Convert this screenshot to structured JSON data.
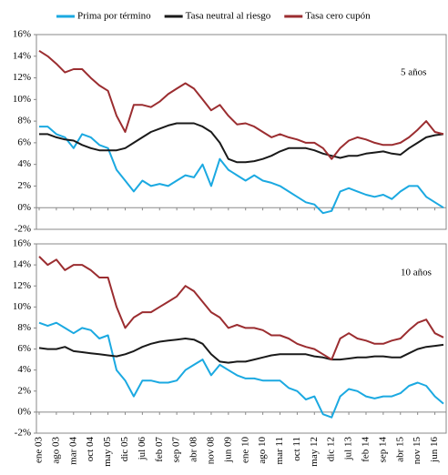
{
  "chart_data": [
    {
      "type": "line",
      "label": "5 años",
      "ylim": [
        -2,
        16
      ],
      "yticks": [
        {
          "value": -2,
          "label": "-2%"
        },
        {
          "value": 0,
          "label": "0%"
        },
        {
          "value": 2,
          "label": "2%"
        },
        {
          "value": 4,
          "label": "4%"
        },
        {
          "value": 6,
          "label": "6%"
        },
        {
          "value": 8,
          "label": "8%"
        },
        {
          "value": 10,
          "label": "10%"
        },
        {
          "value": 12,
          "label": "12%"
        },
        {
          "value": 14,
          "label": "14%"
        },
        {
          "value": 16,
          "label": "16%"
        }
      ],
      "legend": "top",
      "series": [
        {
          "name": "Prima por término",
          "color": "#1ba9e1",
          "values": [
            7.5,
            7.5,
            6.8,
            6.5,
            5.5,
            6.8,
            6.5,
            5.8,
            5.5,
            3.5,
            2.5,
            1.5,
            2.5,
            2.0,
            2.2,
            2.0,
            2.5,
            3.0,
            2.8,
            4.0,
            2.0,
            4.5,
            3.5,
            3.0,
            2.5,
            3.0,
            2.5,
            2.3,
            2.0,
            1.5,
            1.0,
            0.5,
            0.3,
            -0.5,
            -0.3,
            1.5,
            1.8,
            1.5,
            1.2,
            1.0,
            1.2,
            0.8,
            1.5,
            2.0,
            2.0,
            1.0,
            0.5,
            0.0
          ]
        },
        {
          "name": "Tasa neutral al riesgo",
          "color": "#1a1a1a",
          "values": [
            6.8,
            6.8,
            6.5,
            6.3,
            6.2,
            5.8,
            5.5,
            5.3,
            5.3,
            5.3,
            5.5,
            6.0,
            6.5,
            7.0,
            7.3,
            7.6,
            7.8,
            7.8,
            7.8,
            7.5,
            7.0,
            6.0,
            4.5,
            4.2,
            4.2,
            4.3,
            4.5,
            4.8,
            5.2,
            5.5,
            5.5,
            5.5,
            5.3,
            5.0,
            4.8,
            4.6,
            4.8,
            4.8,
            5.0,
            5.1,
            5.2,
            5.0,
            4.9,
            5.5,
            6.0,
            6.5,
            6.7,
            6.8
          ]
        },
        {
          "name": "Tasa cero cupón",
          "color": "#9b2d30",
          "values": [
            14.5,
            14.0,
            13.3,
            12.5,
            12.8,
            12.8,
            12.0,
            11.3,
            10.8,
            8.5,
            7.0,
            9.5,
            9.5,
            9.3,
            9.8,
            10.5,
            11.0,
            11.5,
            11.0,
            10.0,
            9.0,
            9.5,
            8.5,
            7.7,
            7.8,
            7.5,
            7.0,
            6.5,
            6.8,
            6.5,
            6.3,
            6.0,
            6.0,
            5.5,
            4.5,
            5.5,
            6.2,
            6.5,
            6.3,
            6.0,
            5.8,
            5.8,
            6.0,
            6.5,
            7.2,
            8.0,
            7.0,
            6.8
          ]
        }
      ]
    },
    {
      "type": "line",
      "label": "10 años",
      "ylim": [
        -2,
        16
      ],
      "yticks": [
        {
          "value": -2,
          "label": "-2%"
        },
        {
          "value": 0,
          "label": "0%"
        },
        {
          "value": 2,
          "label": "2%"
        },
        {
          "value": 4,
          "label": "4%"
        },
        {
          "value": 6,
          "label": "6%"
        },
        {
          "value": 8,
          "label": "8%"
        },
        {
          "value": 10,
          "label": "10%"
        },
        {
          "value": 12,
          "label": "12%"
        },
        {
          "value": 14,
          "label": "14%"
        },
        {
          "value": 16,
          "label": "16%"
        }
      ],
      "categories": [
        "ene 03",
        null,
        "ago 03",
        null,
        "mar 04",
        null,
        "oct 04",
        null,
        "may 05",
        null,
        "dic 05",
        null,
        "jul 06",
        null,
        "feb 07",
        null,
        "sep 07",
        null,
        "abr 08",
        null,
        "nov 08",
        null,
        "jun 09",
        null,
        "ene 10",
        null,
        "ago 10",
        null,
        "mar 11",
        null,
        "oct 11",
        null,
        "may 12",
        null,
        "dic 12",
        null,
        "jul 13",
        null,
        "feb 14",
        null,
        "sep 14",
        null,
        "abr 15",
        null,
        "nov 15",
        null,
        "jun 16",
        null
      ],
      "series": [
        {
          "color": "#1ba9e1",
          "values": [
            8.5,
            8.2,
            8.5,
            8.0,
            7.5,
            8.0,
            7.8,
            7.0,
            7.3,
            4.0,
            3.0,
            1.5,
            3.0,
            3.0,
            2.8,
            2.8,
            3.0,
            4.0,
            4.5,
            5.0,
            3.5,
            4.5,
            4.0,
            3.5,
            3.2,
            3.2,
            3.0,
            3.0,
            3.0,
            2.3,
            2.0,
            1.2,
            1.5,
            -0.2,
            -0.5,
            1.5,
            2.2,
            2.0,
            1.5,
            1.3,
            1.5,
            1.5,
            1.8,
            2.5,
            2.8,
            2.5,
            1.5,
            0.8
          ]
        },
        {
          "color": "#1a1a1a",
          "values": [
            6.1,
            6.0,
            6.0,
            6.2,
            5.8,
            5.7,
            5.6,
            5.5,
            5.4,
            5.3,
            5.5,
            5.8,
            6.2,
            6.5,
            6.7,
            6.8,
            6.9,
            7.0,
            6.9,
            6.5,
            5.5,
            4.8,
            4.7,
            4.8,
            4.8,
            5.0,
            5.2,
            5.4,
            5.5,
            5.5,
            5.5,
            5.5,
            5.3,
            5.2,
            5.0,
            5.0,
            5.1,
            5.2,
            5.2,
            5.3,
            5.3,
            5.2,
            5.2,
            5.6,
            6.0,
            6.2,
            6.3,
            6.4
          ]
        },
        {
          "color": "#9b2d30",
          "values": [
            14.8,
            14.0,
            14.5,
            13.5,
            14.0,
            14.0,
            13.5,
            12.8,
            12.8,
            10.0,
            8.0,
            9.0,
            9.5,
            9.5,
            10.0,
            10.5,
            11.0,
            12.0,
            11.5,
            10.5,
            9.5,
            9.0,
            8.0,
            8.3,
            8.0,
            8.0,
            7.8,
            7.3,
            7.3,
            7.0,
            6.5,
            6.2,
            6.0,
            5.5,
            5.0,
            7.0,
            7.5,
            7.0,
            6.8,
            6.5,
            6.5,
            6.8,
            7.0,
            7.8,
            8.5,
            8.8,
            7.5,
            7.1
          ]
        }
      ]
    }
  ]
}
